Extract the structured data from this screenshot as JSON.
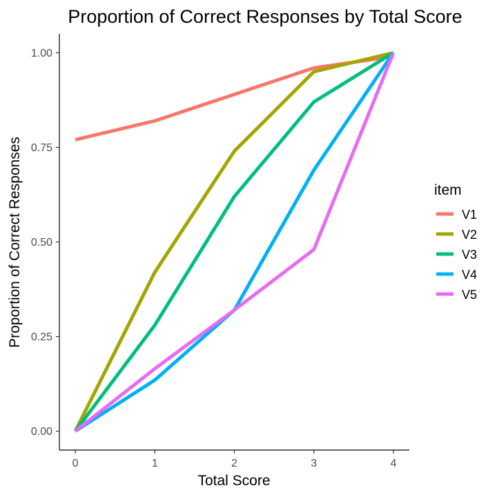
{
  "chart_data": {
    "type": "line",
    "title": "Proportion of Correct Responses by Total Score",
    "xlabel": "Total Score",
    "ylabel": "Proportion of Correct Responses",
    "x": [
      0,
      1,
      2,
      3,
      4
    ],
    "xlim": [
      -0.2,
      4.2
    ],
    "ylim": [
      -0.05,
      1.05
    ],
    "x_ticks": [
      0,
      1,
      2,
      3,
      4
    ],
    "x_tick_labels": [
      "0",
      "1",
      "2",
      "3",
      "4"
    ],
    "y_ticks": [
      0,
      0.25,
      0.5,
      0.75,
      1.0
    ],
    "y_tick_labels": [
      "0.00",
      "0.25",
      "0.50",
      "0.75",
      "1.00"
    ],
    "grid": false,
    "legend": {
      "title": "item",
      "position": "right"
    },
    "series": [
      {
        "name": "V1",
        "color": "#F8766D",
        "values": [
          0.77,
          0.82,
          0.89,
          0.96,
          0.99
        ]
      },
      {
        "name": "V2",
        "color": "#A3A500",
        "values": [
          0.0,
          0.42,
          0.74,
          0.95,
          1.0
        ]
      },
      {
        "name": "V3",
        "color": "#00BF7D",
        "values": [
          0.0,
          0.28,
          0.62,
          0.87,
          1.0
        ]
      },
      {
        "name": "V4",
        "color": "#00B0F6",
        "values": [
          0.0,
          0.135,
          0.32,
          0.69,
          1.0
        ]
      },
      {
        "name": "V5",
        "color": "#E76BF3",
        "values": [
          0.0,
          0.165,
          0.32,
          0.48,
          1.0
        ]
      }
    ]
  }
}
